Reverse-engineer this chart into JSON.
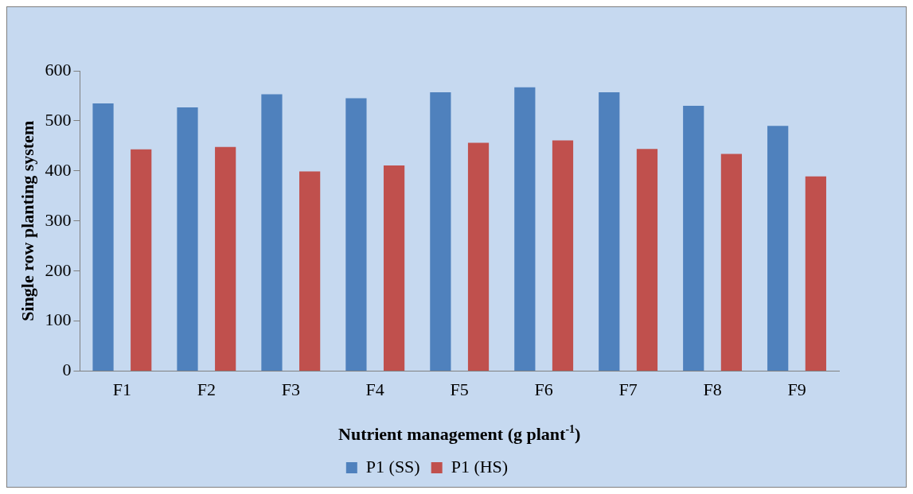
{
  "chart_data": {
    "type": "bar",
    "xlabel": "Nutrient management (g plant$^{-1}$)",
    "ylabel": "Single row planting system",
    "categories": [
      "F1",
      "F2",
      "F3",
      "F4",
      "F5",
      "F6",
      "F7",
      "F8",
      "F9"
    ],
    "series": [
      {
        "name": "P1 (SS)",
        "color": "#4f81bd",
        "values": [
          535,
          527,
          553,
          545,
          557,
          567,
          557,
          530,
          490
        ]
      },
      {
        "name": "P1 (HS)",
        "color": "#c0504d",
        "values": [
          443,
          448,
          399,
          411,
          456,
          461,
          444,
          434,
          389
        ]
      }
    ],
    "ylim": [
      0,
      600
    ],
    "yticks": [
      0,
      100,
      200,
      300,
      400,
      500,
      600
    ],
    "grid": false,
    "legend": "bottom"
  }
}
